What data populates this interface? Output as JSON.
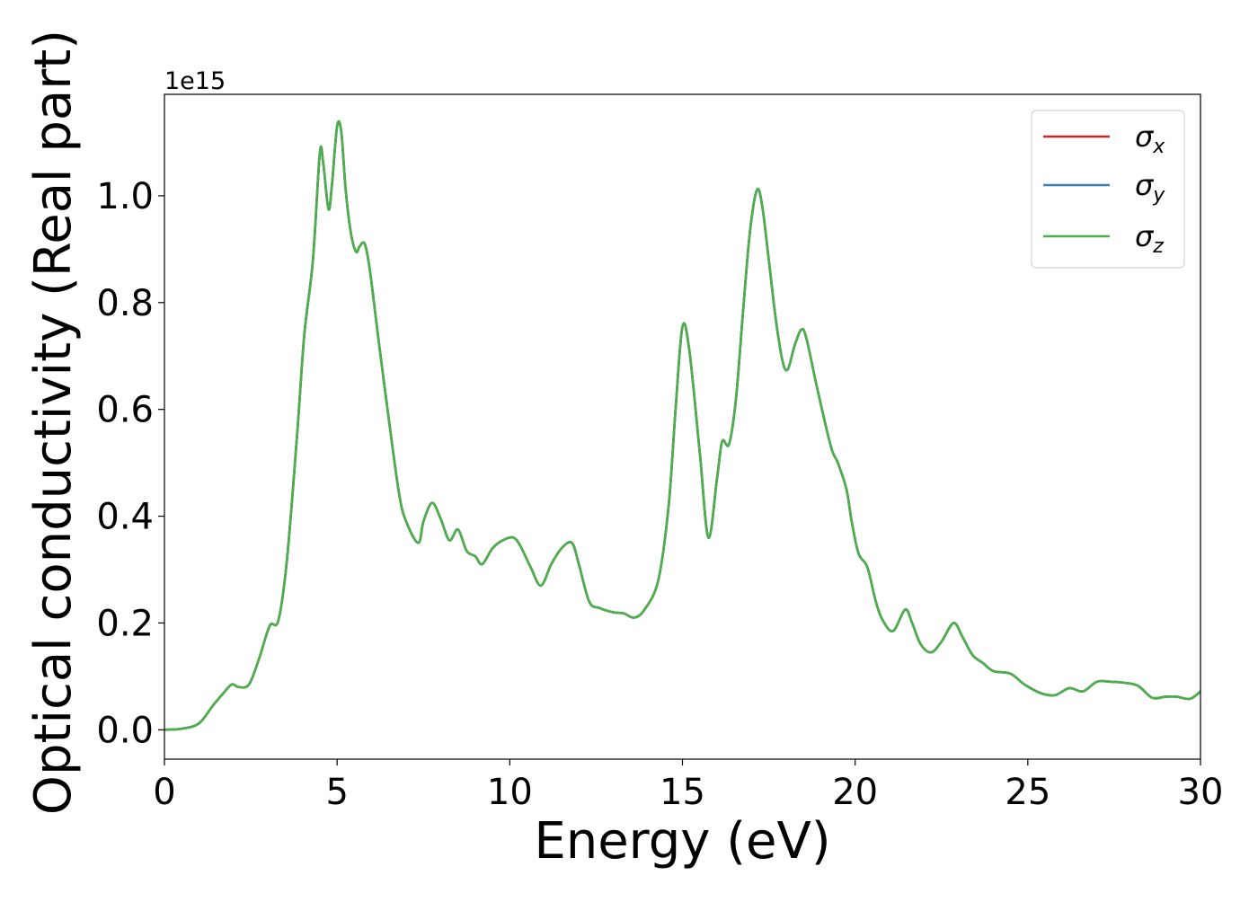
{
  "chart_data": {
    "type": "line",
    "xlabel": "Energy (eV)",
    "ylabel": "Optical conductivity (Real part)",
    "y_offset_label": "1e15",
    "xlim": [
      0,
      30
    ],
    "ylim": [
      -0.055,
      1.19
    ],
    "x_ticks": [
      0,
      5,
      10,
      15,
      20,
      25,
      30
    ],
    "x_tick_labels": [
      "0",
      "5",
      "10",
      "15",
      "20",
      "25",
      "30"
    ],
    "y_ticks": [
      0.0,
      0.2,
      0.4,
      0.6,
      0.8,
      1.0
    ],
    "y_tick_labels": [
      "0.0",
      "0.2",
      "0.4",
      "0.6",
      "0.8",
      "1.0"
    ],
    "grid": false,
    "legend_position": "top-right",
    "colors": {
      "sigma_x": "#d62728",
      "sigma_y": "#3a7fb5",
      "sigma_z": "#4daf4a"
    },
    "x": [
      0,
      0.5,
      1.0,
      1.4,
      1.7,
      1.95,
      2.15,
      2.45,
      2.75,
      3.05,
      3.3,
      3.55,
      3.85,
      4.05,
      4.3,
      4.5,
      4.6,
      4.75,
      4.85,
      5.0,
      5.12,
      5.25,
      5.4,
      5.55,
      5.65,
      5.8,
      5.95,
      6.2,
      6.5,
      6.8,
      7.0,
      7.35,
      7.5,
      7.75,
      8.0,
      8.25,
      8.5,
      8.75,
      9.0,
      9.2,
      9.5,
      9.8,
      10.1,
      10.3,
      10.6,
      10.9,
      11.2,
      11.5,
      11.8,
      12.0,
      12.3,
      12.6,
      13.0,
      13.3,
      13.6,
      13.9,
      14.3,
      14.6,
      14.8,
      15.0,
      15.2,
      15.5,
      15.75,
      16.0,
      16.15,
      16.35,
      16.55,
      16.75,
      16.95,
      17.15,
      17.3,
      17.5,
      17.7,
      17.9,
      18.05,
      18.25,
      18.45,
      18.6,
      18.9,
      19.3,
      19.5,
      19.75,
      19.9,
      20.1,
      20.35,
      20.6,
      20.8,
      21.1,
      21.45,
      21.65,
      21.9,
      22.2,
      22.5,
      22.85,
      23.1,
      23.4,
      23.7,
      24.0,
      24.5,
      24.9,
      25.4,
      25.8,
      26.2,
      26.6,
      27.0,
      27.4,
      27.8,
      28.2,
      28.6,
      29.0,
      29.3,
      29.7,
      30.0
    ],
    "series": [
      {
        "name": "σ_x",
        "values": [
          0.0,
          0.002,
          0.012,
          0.045,
          0.068,
          0.085,
          0.08,
          0.085,
          0.135,
          0.195,
          0.205,
          0.32,
          0.56,
          0.74,
          0.88,
          1.08,
          1.06,
          0.975,
          1.02,
          1.13,
          1.12,
          1.01,
          0.93,
          0.895,
          0.905,
          0.91,
          0.86,
          0.73,
          0.58,
          0.44,
          0.39,
          0.35,
          0.39,
          0.425,
          0.395,
          0.355,
          0.375,
          0.335,
          0.325,
          0.31,
          0.34,
          0.355,
          0.36,
          0.345,
          0.305,
          0.27,
          0.31,
          0.34,
          0.35,
          0.31,
          0.24,
          0.228,
          0.22,
          0.218,
          0.21,
          0.225,
          0.28,
          0.42,
          0.6,
          0.755,
          0.71,
          0.52,
          0.36,
          0.47,
          0.54,
          0.535,
          0.62,
          0.78,
          0.93,
          1.01,
          0.985,
          0.88,
          0.77,
          0.69,
          0.675,
          0.72,
          0.75,
          0.73,
          0.64,
          0.53,
          0.5,
          0.45,
          0.39,
          0.33,
          0.305,
          0.24,
          0.205,
          0.185,
          0.225,
          0.2,
          0.16,
          0.145,
          0.165,
          0.2,
          0.175,
          0.14,
          0.125,
          0.11,
          0.105,
          0.085,
          0.068,
          0.065,
          0.078,
          0.072,
          0.09,
          0.09,
          0.088,
          0.082,
          0.06,
          0.062,
          0.062,
          0.058,
          0.072
        ]
      },
      {
        "name": "σ_y",
        "values": [
          0.0,
          0.002,
          0.012,
          0.045,
          0.068,
          0.085,
          0.08,
          0.085,
          0.135,
          0.195,
          0.205,
          0.32,
          0.56,
          0.74,
          0.88,
          1.08,
          1.06,
          0.975,
          1.02,
          1.13,
          1.12,
          1.01,
          0.93,
          0.895,
          0.905,
          0.91,
          0.86,
          0.73,
          0.58,
          0.44,
          0.39,
          0.35,
          0.39,
          0.425,
          0.395,
          0.355,
          0.375,
          0.335,
          0.325,
          0.31,
          0.34,
          0.355,
          0.36,
          0.345,
          0.305,
          0.27,
          0.31,
          0.34,
          0.35,
          0.31,
          0.24,
          0.228,
          0.22,
          0.218,
          0.21,
          0.225,
          0.28,
          0.42,
          0.6,
          0.755,
          0.71,
          0.52,
          0.36,
          0.47,
          0.54,
          0.535,
          0.62,
          0.78,
          0.93,
          1.01,
          0.985,
          0.88,
          0.77,
          0.69,
          0.675,
          0.72,
          0.75,
          0.73,
          0.64,
          0.53,
          0.5,
          0.45,
          0.39,
          0.33,
          0.305,
          0.24,
          0.205,
          0.185,
          0.225,
          0.2,
          0.16,
          0.145,
          0.165,
          0.2,
          0.175,
          0.14,
          0.125,
          0.11,
          0.105,
          0.085,
          0.068,
          0.065,
          0.078,
          0.072,
          0.09,
          0.09,
          0.088,
          0.082,
          0.06,
          0.062,
          0.062,
          0.058,
          0.072
        ]
      },
      {
        "name": "σ_z",
        "values": [
          0.0,
          0.002,
          0.012,
          0.045,
          0.068,
          0.085,
          0.08,
          0.085,
          0.135,
          0.195,
          0.205,
          0.32,
          0.56,
          0.74,
          0.88,
          1.08,
          1.06,
          0.975,
          1.02,
          1.13,
          1.12,
          1.01,
          0.93,
          0.895,
          0.905,
          0.91,
          0.86,
          0.73,
          0.58,
          0.44,
          0.39,
          0.35,
          0.39,
          0.425,
          0.395,
          0.355,
          0.375,
          0.335,
          0.325,
          0.31,
          0.34,
          0.355,
          0.36,
          0.345,
          0.305,
          0.27,
          0.31,
          0.34,
          0.35,
          0.31,
          0.24,
          0.228,
          0.22,
          0.218,
          0.21,
          0.225,
          0.28,
          0.42,
          0.6,
          0.755,
          0.71,
          0.52,
          0.36,
          0.47,
          0.54,
          0.535,
          0.62,
          0.78,
          0.93,
          1.01,
          0.985,
          0.88,
          0.77,
          0.69,
          0.675,
          0.72,
          0.75,
          0.73,
          0.64,
          0.53,
          0.5,
          0.45,
          0.39,
          0.33,
          0.305,
          0.24,
          0.205,
          0.185,
          0.225,
          0.2,
          0.16,
          0.145,
          0.165,
          0.2,
          0.175,
          0.14,
          0.125,
          0.11,
          0.105,
          0.085,
          0.068,
          0.065,
          0.078,
          0.072,
          0.09,
          0.09,
          0.088,
          0.082,
          0.06,
          0.062,
          0.062,
          0.058,
          0.072
        ]
      }
    ],
    "legend": [
      {
        "symbol": "σ",
        "subscript": "x",
        "color_key": "sigma_x"
      },
      {
        "symbol": "σ",
        "subscript": "y",
        "color_key": "sigma_y"
      },
      {
        "symbol": "σ",
        "subscript": "z",
        "color_key": "sigma_z"
      }
    ]
  }
}
